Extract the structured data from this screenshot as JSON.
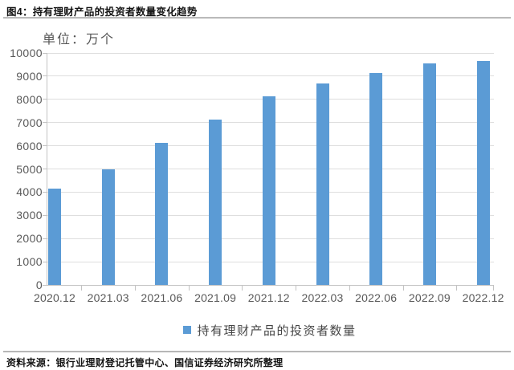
{
  "header": {
    "title": "图4：持有理财产品的投资者数量变化趋势"
  },
  "chart_data": {
    "type": "bar",
    "title": "持有理财产品的投资者数量变化趋势",
    "unit_label": "单位：万个",
    "categories": [
      "2020.12",
      "2021.03",
      "2021.06",
      "2021.09",
      "2021.12",
      "2022.03",
      "2022.06",
      "2022.09",
      "2022.12"
    ],
    "values": [
      4150,
      4980,
      6140,
      7130,
      8130,
      8700,
      9150,
      9560,
      9670
    ],
    "series_name": "持有理财产品的投资者数量",
    "legend": [
      "持有理财产品的投资者数量"
    ],
    "legend_position": "bottom",
    "xlabel": "",
    "ylabel": "",
    "ylim": [
      0,
      10000
    ],
    "yticks": [
      0,
      1000,
      2000,
      3000,
      4000,
      5000,
      6000,
      7000,
      8000,
      9000,
      10000
    ],
    "ytick_labels": [
      "0",
      "1000",
      "2000",
      "3000",
      "4000",
      "5000",
      "6000",
      "7000",
      "8000",
      "9000",
      "10000"
    ],
    "grid": true,
    "bar_color": "#5B9BD5"
  },
  "footer": {
    "source": "资料来源：银行业理财登记托管中心、国信证券经济研究所整理"
  }
}
